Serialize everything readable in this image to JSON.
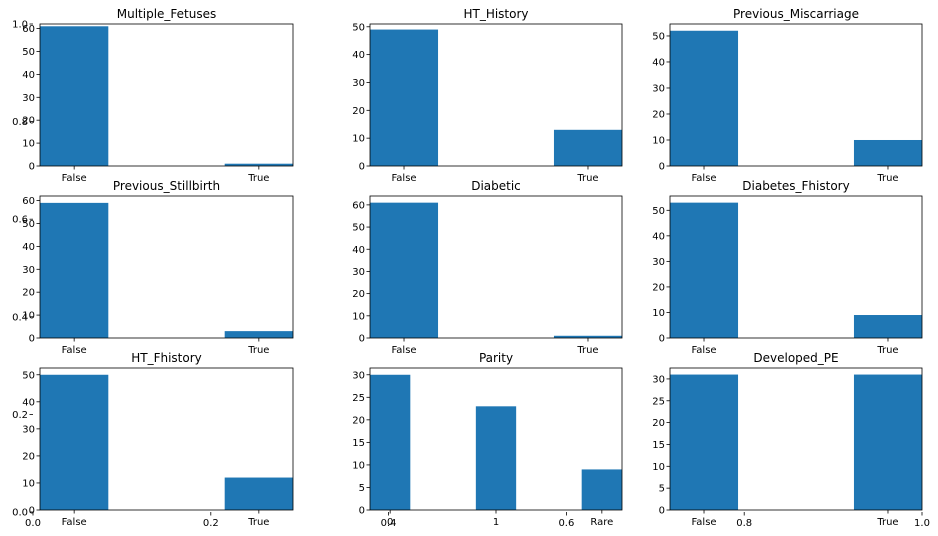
{
  "bar_color": "#1f77b4",
  "chart_data": [
    {
      "type": "bar",
      "title": "Multiple_Fetuses",
      "categories": [
        "False",
        "True"
      ],
      "values": [
        61,
        1
      ],
      "ylim": [
        0,
        62
      ],
      "yticks": [
        0,
        10,
        20,
        30,
        40,
        50,
        60
      ]
    },
    {
      "type": "bar",
      "title": "HT_History",
      "categories": [
        "False",
        "True"
      ],
      "values": [
        49,
        13
      ],
      "ylim": [
        0,
        51
      ],
      "yticks": [
        0,
        10,
        20,
        30,
        40,
        50
      ]
    },
    {
      "type": "bar",
      "title": "Previous_Miscarriage",
      "categories": [
        "False",
        "True"
      ],
      "values": [
        52,
        10
      ],
      "ylim": [
        0,
        54.6
      ],
      "yticks": [
        0,
        10,
        20,
        30,
        40,
        50
      ]
    },
    {
      "type": "bar",
      "title": "Previous_Stillbirth",
      "categories": [
        "False",
        "True"
      ],
      "values": [
        59,
        3
      ],
      "ylim": [
        0,
        62
      ],
      "yticks": [
        0,
        10,
        20,
        30,
        40,
        50,
        60
      ]
    },
    {
      "type": "bar",
      "title": "Diabetic",
      "categories": [
        "False",
        "True"
      ],
      "values": [
        61,
        1
      ],
      "ylim": [
        0,
        64
      ],
      "yticks": [
        0,
        10,
        20,
        30,
        40,
        50,
        60
      ]
    },
    {
      "type": "bar",
      "title": "Diabetes_Fhistory",
      "categories": [
        "False",
        "True"
      ],
      "values": [
        53,
        9
      ],
      "ylim": [
        0,
        55.6
      ],
      "yticks": [
        0,
        10,
        20,
        30,
        40,
        50
      ]
    },
    {
      "type": "bar",
      "title": "HT_Fhistory",
      "categories": [
        "False",
        "True"
      ],
      "values": [
        50,
        12
      ],
      "ylim": [
        0,
        52.5
      ],
      "yticks": [
        0,
        10,
        20,
        30,
        40,
        50
      ]
    },
    {
      "type": "bar",
      "title": "Parity",
      "categories": [
        "0",
        "1",
        "Rare"
      ],
      "values": [
        30,
        23,
        9
      ],
      "ylim": [
        0,
        31.5
      ],
      "yticks": [
        0,
        5,
        10,
        15,
        20,
        25,
        30
      ]
    },
    {
      "type": "bar",
      "title": "Developed_PE",
      "categories": [
        "False",
        "True"
      ],
      "values": [
        31,
        31
      ],
      "ylim": [
        0,
        32.5
      ],
      "yticks": [
        0,
        5,
        10,
        15,
        20,
        25,
        30
      ]
    }
  ],
  "background_axis": {
    "xticks": [
      "0.0",
      "0.2",
      "0.4",
      "0.6",
      "0.8",
      "1.0"
    ],
    "yticks": [
      "0.0",
      "0.2",
      "0.4",
      "0.6",
      "0.8",
      "1.0"
    ]
  }
}
